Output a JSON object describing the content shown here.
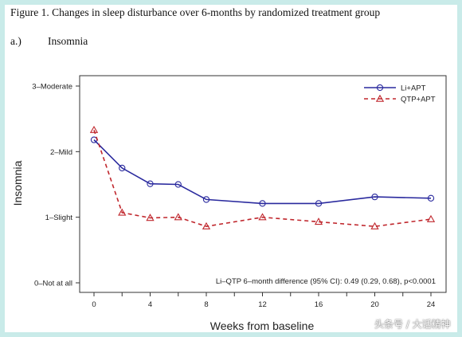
{
  "figure_title": "Figure 1. Changes in sleep disturbance over 6-months by randomized treatment group",
  "panel": {
    "label": "a.)",
    "name": "Insomnia"
  },
  "watermark": "头条号 / 大话精神",
  "colors": {
    "li_apt": "#2a2a9e",
    "qtp_apt": "#c0272d",
    "frame": "#c9ebe9"
  },
  "chart_data": {
    "type": "line",
    "xlabel": "Weeks from baseline",
    "ylabel": "Insomnia",
    "x_ticks": [
      0,
      4,
      8,
      12,
      16,
      20,
      24
    ],
    "x_tick_labels": [
      "0",
      "4",
      "8",
      "12",
      "16",
      "20",
      "24"
    ],
    "xlim": [
      0,
      24
    ],
    "ylim": [
      0,
      3
    ],
    "y_ticks": [
      0,
      1,
      2,
      3
    ],
    "y_tick_labels": [
      "0–Not at all",
      "1–Slight",
      "2–Mild",
      "3–Moderate"
    ],
    "grid": false,
    "legend_position": "top-right",
    "x": [
      0,
      2,
      4,
      6,
      8,
      12,
      16,
      20,
      24
    ],
    "series": [
      {
        "name": "Li+APT",
        "marker": "circle",
        "line": "solid",
        "values": [
          2.18,
          1.75,
          1.51,
          1.5,
          1.27,
          1.21,
          1.21,
          1.31,
          1.29
        ]
      },
      {
        "name": "QTP+APT",
        "marker": "triangle",
        "line": "dashed",
        "values": [
          2.33,
          1.07,
          0.99,
          1.0,
          0.86,
          1.0,
          0.93,
          0.86,
          0.97
        ]
      }
    ],
    "annotation": "Li–QTP 6–month difference (95% CI): 0.49 (0.29, 0.68), p<0.0001"
  }
}
